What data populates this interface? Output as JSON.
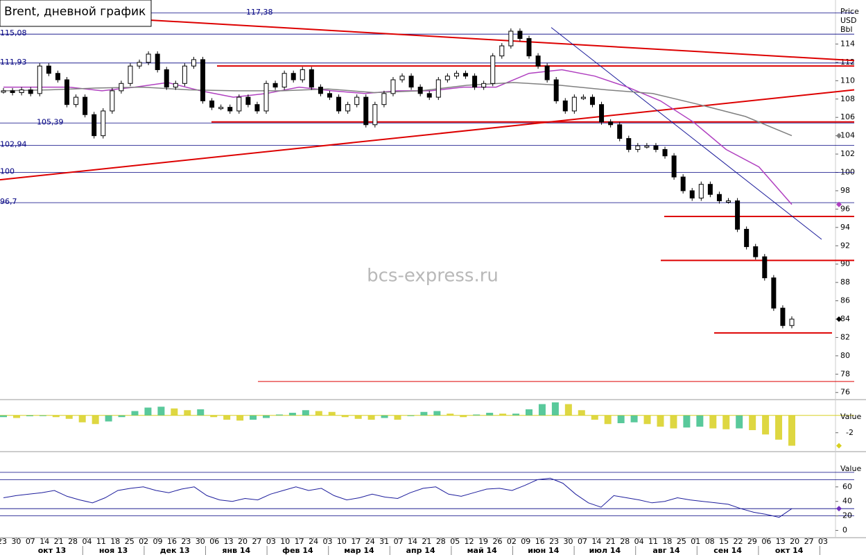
{
  "title": "Brent, дневной график",
  "watermark": "bcs-express.ru",
  "chart_data": [
    {
      "type": "candlestick",
      "y_axis_label": [
        "Price",
        "USD",
        "Bbl"
      ],
      "ylim": [
        75.3,
        118.8
      ],
      "yticks": [
        76,
        78,
        80,
        82,
        84,
        86,
        88,
        90,
        92,
        94,
        96,
        98,
        100,
        102,
        104,
        106,
        108,
        110,
        112,
        114
      ],
      "series": [
        {
          "color": "#000000",
          "values": [
            108.9,
            108.7,
            109.0,
            108.6,
            111.6,
            110.8,
            110.1,
            107.4,
            108.2,
            106.3,
            104.0,
            106.7,
            108.9,
            109.7,
            111.6,
            112.0,
            112.9,
            111.2,
            109.3,
            109.7,
            111.6,
            112.3,
            107.8,
            107.1,
            107.1,
            106.7,
            108.2,
            107.4,
            106.7,
            109.7,
            109.3,
            110.8,
            110.1,
            111.2,
            109.3,
            108.6,
            108.2,
            106.7,
            107.4,
            108.2,
            105.2,
            107.4,
            108.6,
            110.1,
            110.5,
            109.3,
            108.6,
            108.2,
            110.1,
            110.5,
            110.8,
            110.5,
            109.3,
            109.7,
            112.7,
            113.8,
            115.4,
            114.6,
            112.7,
            111.6,
            110.1,
            107.8,
            106.7,
            108.2,
            108.2,
            107.4,
            105.5,
            105.2,
            103.7,
            102.5,
            102.9,
            102.9,
            102.5,
            101.8,
            99.5,
            98.0,
            97.2,
            98.7,
            97.6,
            96.9,
            96.9,
            93.8,
            91.9,
            90.8,
            88.5,
            85.2,
            83.3,
            84.0
          ]
        },
        {
          "color": "#b040c0",
          "values": [
            109.3,
            109.3,
            109.3,
            108.9,
            109.3,
            109.8,
            108.9,
            108.2,
            108.6,
            109.3,
            108.9,
            108.6,
            108.9,
            108.9,
            109.3,
            109.3,
            110.8,
            111.2,
            110.5,
            109.3,
            107.8,
            105.5,
            102.5,
            100.6,
            96.5
          ]
        },
        {
          "color": "#808080",
          "values": [
            108.9,
            109.0,
            109.2,
            109.3,
            109.0,
            108.9,
            108.9,
            109.1,
            108.7,
            108.9,
            109.5,
            109.8,
            109.5,
            109.0,
            108.6,
            107.4,
            106.1,
            104.0
          ]
        }
      ],
      "levels": [
        {
          "value": 117.38,
          "label": "117,38"
        },
        {
          "value": 115.08,
          "label": "115,08"
        },
        {
          "value": 111.93,
          "label": "111,93"
        },
        {
          "value": 105.39,
          "label": "105,39"
        },
        {
          "value": 102.94,
          "label": "102,94"
        },
        100,
        {
          "value": 96.7,
          "label": "96,7"
        }
      ],
      "level_color": "#000080",
      "support_lines": [
        111.6,
        105.5,
        95.2,
        90.4,
        82.5,
        77.2
      ],
      "trend_lines": [
        {
          "start": 99.2,
          "end": 109.0
        },
        {
          "start": 116.6,
          "end": 112.2
        }
      ],
      "trend_color": "#dd0000",
      "channel_line": {
        "start": 115.8,
        "end": 92.7,
        "color": "#1a1a9a"
      }
    },
    {
      "type": "bar",
      "y_axis_label": "Value",
      "ylim": [
        -4.1,
        1.5
      ],
      "yticks": [
        -2
      ],
      "colors": [
        "#3cc08a",
        "#d8d020"
      ],
      "values": [
        -0.2,
        -0.3,
        -0.1,
        0.0,
        -0.2,
        -0.4,
        -0.8,
        -1.0,
        -0.7,
        -0.2,
        0.5,
        0.9,
        1.0,
        0.8,
        0.6,
        0.7,
        -0.2,
        -0.5,
        -0.6,
        -0.5,
        -0.3,
        0.1,
        0.3,
        0.6,
        0.5,
        0.4,
        -0.2,
        -0.4,
        -0.5,
        -0.3,
        -0.5,
        0.0,
        0.4,
        0.5,
        0.2,
        -0.2,
        0.1,
        0.3,
        0.2,
        0.2,
        0.7,
        1.3,
        1.5,
        1.3,
        0.6,
        -0.5,
        -1.0,
        -0.9,
        -0.8,
        -1.0,
        -1.3,
        -1.5,
        -1.4,
        -1.3,
        -1.5,
        -1.6,
        -1.5,
        -1.7,
        -2.2,
        -2.8,
        -3.5
      ]
    },
    {
      "type": "line",
      "y_axis_label": "Value",
      "ylim": [
        -10,
        100
      ],
      "yticks": [
        0,
        20,
        40,
        60
      ],
      "levels": [
        20,
        30,
        70,
        80
      ],
      "color": "#1c1c9c",
      "values": [
        45,
        48,
        50,
        52,
        55,
        47,
        42,
        38,
        45,
        55,
        58,
        60,
        55,
        52,
        57,
        60,
        48,
        42,
        40,
        44,
        42,
        50,
        55,
        60,
        55,
        58,
        48,
        42,
        45,
        50,
        46,
        44,
        52,
        58,
        60,
        50,
        47,
        52,
        57,
        58,
        55,
        62,
        70,
        72,
        65,
        50,
        38,
        32,
        48,
        45,
        42,
        38,
        40,
        45,
        42,
        40,
        38,
        36,
        30,
        25,
        22,
        18,
        30
      ],
      "week_labels": [
        "23",
        "30",
        "07",
        "14",
        "21",
        "28",
        "04",
        "11",
        "18",
        "25",
        "02",
        "09",
        "16",
        "23",
        "30",
        "06",
        "13",
        "20",
        "27",
        "03",
        "10",
        "17",
        "24",
        "03",
        "10",
        "17",
        "24",
        "31",
        "07",
        "14",
        "21",
        "28",
        "05",
        "12",
        "19",
        "26",
        "02",
        "09",
        "16",
        "23",
        "30",
        "07",
        "14",
        "21",
        "28",
        "04",
        "11",
        "18",
        "25",
        "01",
        "08",
        "15",
        "22",
        "29",
        "06",
        "13",
        "20",
        "27",
        "03"
      ],
      "month_labels": [
        "окт 13",
        "ноя 13",
        "дек 13",
        "янв 14",
        "фев 14",
        "мар 14",
        "апр 14",
        "май 14",
        "июн 14",
        "июл 14",
        "авг 14",
        "сен 14",
        "окт 14"
      ]
    }
  ]
}
